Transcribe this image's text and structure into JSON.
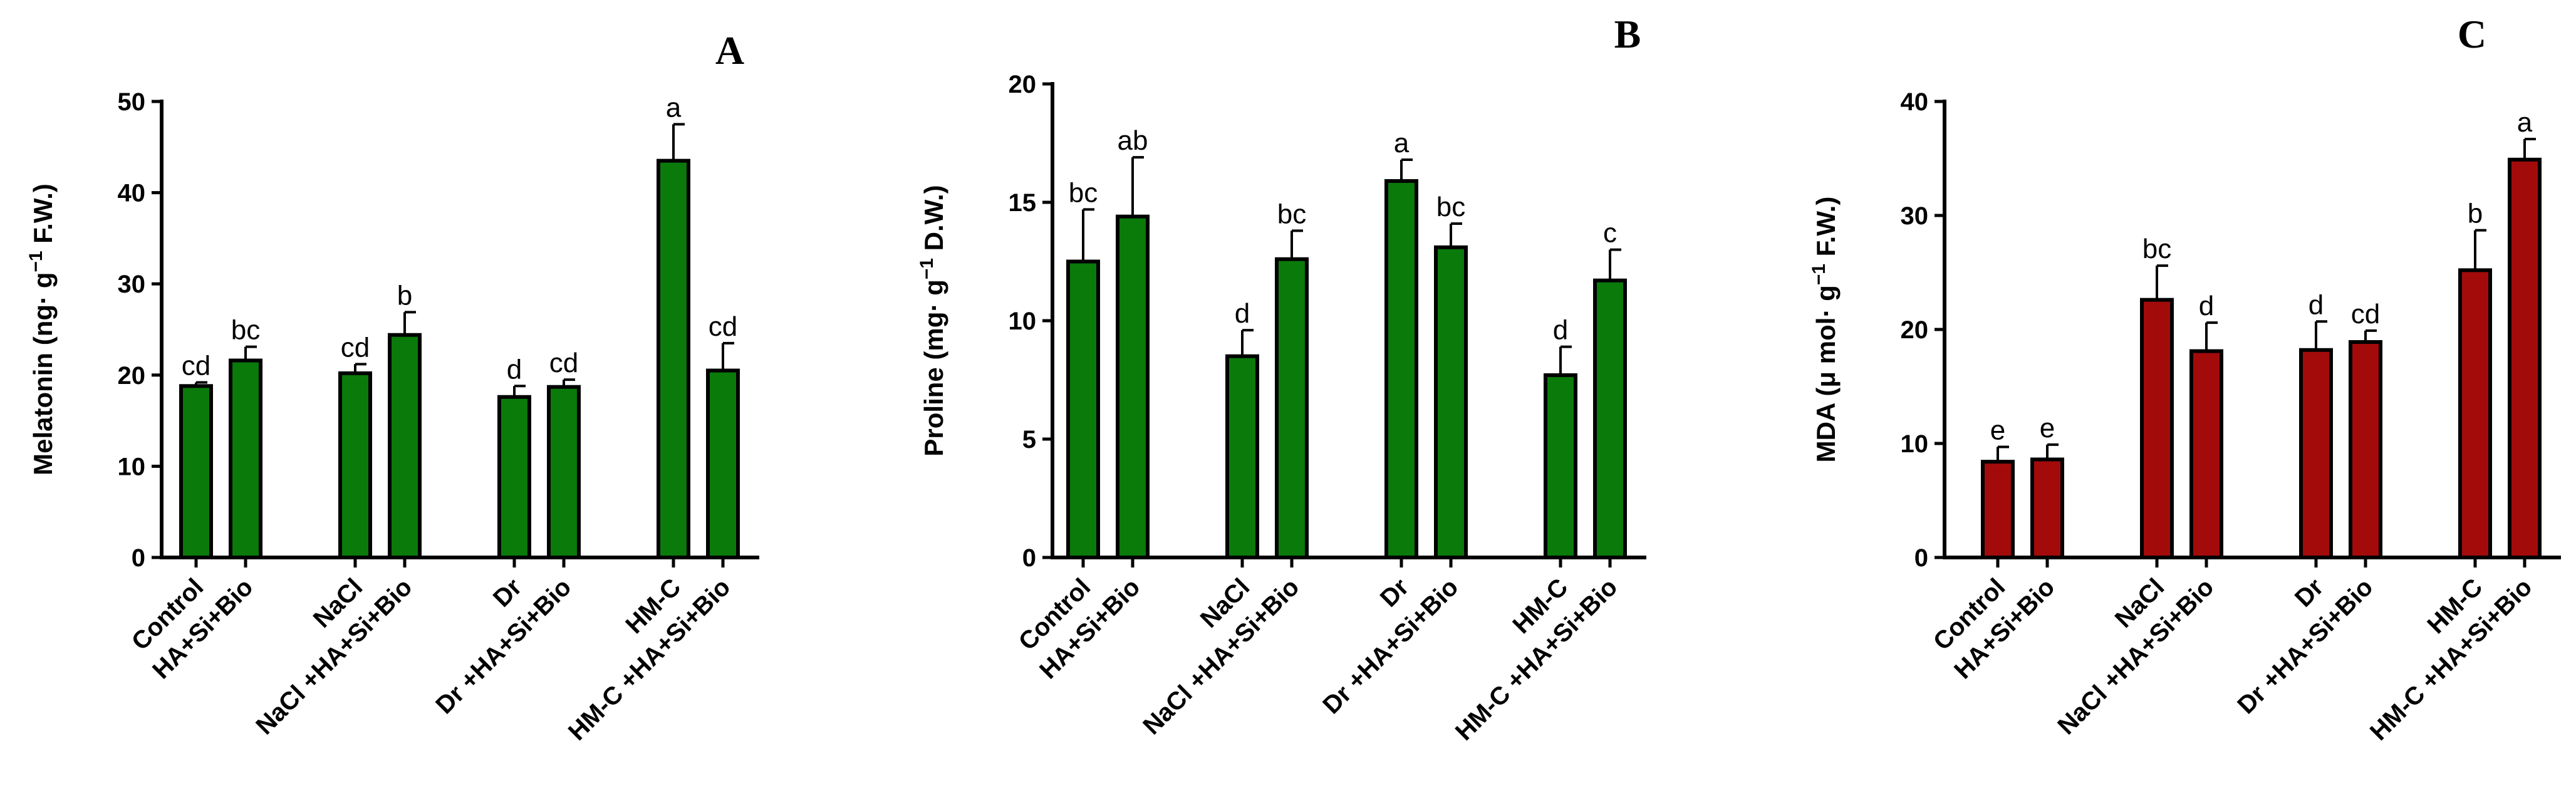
{
  "figure": {
    "colors": {
      "axis": "#000000",
      "bar_edge": "#000000",
      "background": "#ffffff"
    }
  },
  "chart_data": [
    {
      "type": "bar",
      "panel_label": "A",
      "ylabel_pre": "Melatonin (ng· g",
      "ylabel_sup": "−1",
      "ylabel_post": " F.W.)",
      "ylim": [
        0,
        50
      ],
      "yticks": [
        0,
        10,
        20,
        30,
        40,
        50
      ],
      "color": "#0a7a0a",
      "categories": [
        "Control",
        "HA+Si+Bio",
        "NaCl",
        "NaCl +HA+Si+Bio",
        "Dr",
        "Dr +HA+Si+Bio",
        "HM-C",
        "HM-C +HA+Si+Bio"
      ],
      "values": [
        18.8,
        21.6,
        20.2,
        24.4,
        17.6,
        18.7,
        43.5,
        20.5
      ],
      "errors": [
        0.4,
        1.5,
        1.0,
        2.5,
        1.2,
        0.8,
        4.0,
        3.0
      ],
      "letters": [
        "cd",
        "bc",
        "cd",
        "b",
        "d",
        "cd",
        "a",
        "cd"
      ]
    },
    {
      "type": "bar",
      "panel_label": "B",
      "ylabel_pre": "Proline (mg· g",
      "ylabel_sup": "−1",
      "ylabel_post": " D.W.)",
      "ylim": [
        0,
        20
      ],
      "yticks": [
        0,
        5,
        10,
        15,
        20
      ],
      "color": "#0a7a0a",
      "categories": [
        "Control",
        "HA+Si+Bio",
        "NaCl",
        "NaCl +HA+Si+Bio",
        "Dr",
        "Dr +HA+Si+Bio",
        "HM-C",
        "HM-C +HA+Si+Bio"
      ],
      "values": [
        12.5,
        14.4,
        8.5,
        12.6,
        15.9,
        13.1,
        7.7,
        11.7
      ],
      "errors": [
        2.2,
        2.5,
        1.1,
        1.2,
        0.9,
        1.0,
        1.2,
        1.3
      ],
      "letters": [
        "bc",
        "ab",
        "d",
        "bc",
        "a",
        "bc",
        "d",
        "c"
      ]
    },
    {
      "type": "bar",
      "panel_label": "C",
      "ylabel_pre": "MDA (μ mol· g",
      "ylabel_sup": "−1",
      "ylabel_post": " F.W.)",
      "ylim": [
        0,
        40
      ],
      "yticks": [
        0,
        10,
        20,
        30,
        40
      ],
      "color": "#a30b0b",
      "categories": [
        "Control",
        "HA+Si+Bio",
        "NaCl",
        "NaCl +HA+Si+Bio",
        "Dr",
        "Dr +HA+Si+Bio",
        "HM-C",
        "HM-C +HA+Si+Bio"
      ],
      "values": [
        8.4,
        8.6,
        22.6,
        18.1,
        18.2,
        18.9,
        25.2,
        34.9
      ],
      "errors": [
        1.3,
        1.3,
        3.0,
        2.5,
        2.5,
        1.0,
        3.5,
        1.8
      ],
      "letters": [
        "e",
        "e",
        "bc",
        "d",
        "d",
        "cd",
        "b",
        "a"
      ]
    }
  ]
}
